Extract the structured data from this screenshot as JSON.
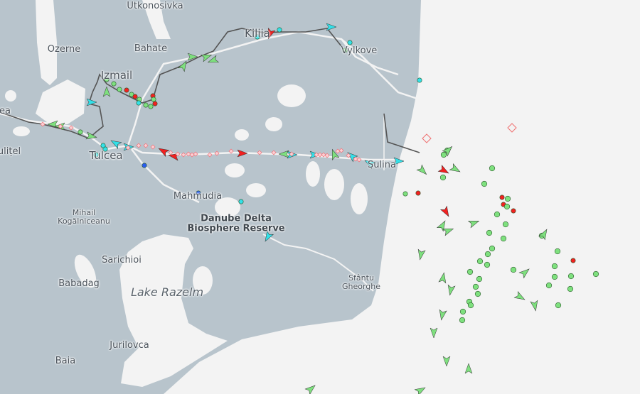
{
  "map": {
    "colors": {
      "land": "#b8c4cc",
      "water": "#f3f3f3",
      "route": "#555555",
      "vessel_green": "#7ee07e",
      "vessel_red": "#f22020",
      "vessel_cyan": "#33e0e8",
      "vessel_blue": "#2a5cf0",
      "vessel_pink": "#f6a0a8"
    },
    "labels": {
      "utkonosivka": "Utkonosivka",
      "ozerne": "Ozerne",
      "bahate": "Bahate",
      "izmail": "Izmail",
      "kiliia": "Kiliia",
      "vylkove": "Vylkove",
      "isaccea": "ea",
      "niculitel": "ulițel",
      "tulcea": "Tulcea",
      "mahmudia": "Mahmudia",
      "sulina": "Sulina",
      "mihail_line1": "Mihail",
      "mihail_line2": "Kogălniceanu",
      "reserve_line1": "Danube Delta",
      "reserve_line2": "Biosphere Reserve",
      "sarichioi": "Sarichioi",
      "babadag": "Babadag",
      "lake_razelm": "Lake Razelm",
      "sfantu_line1": "Sfântu",
      "sfantu_line2": "Gheorghe",
      "jurilovca": "Jurilovca",
      "baia": "Baia"
    }
  }
}
